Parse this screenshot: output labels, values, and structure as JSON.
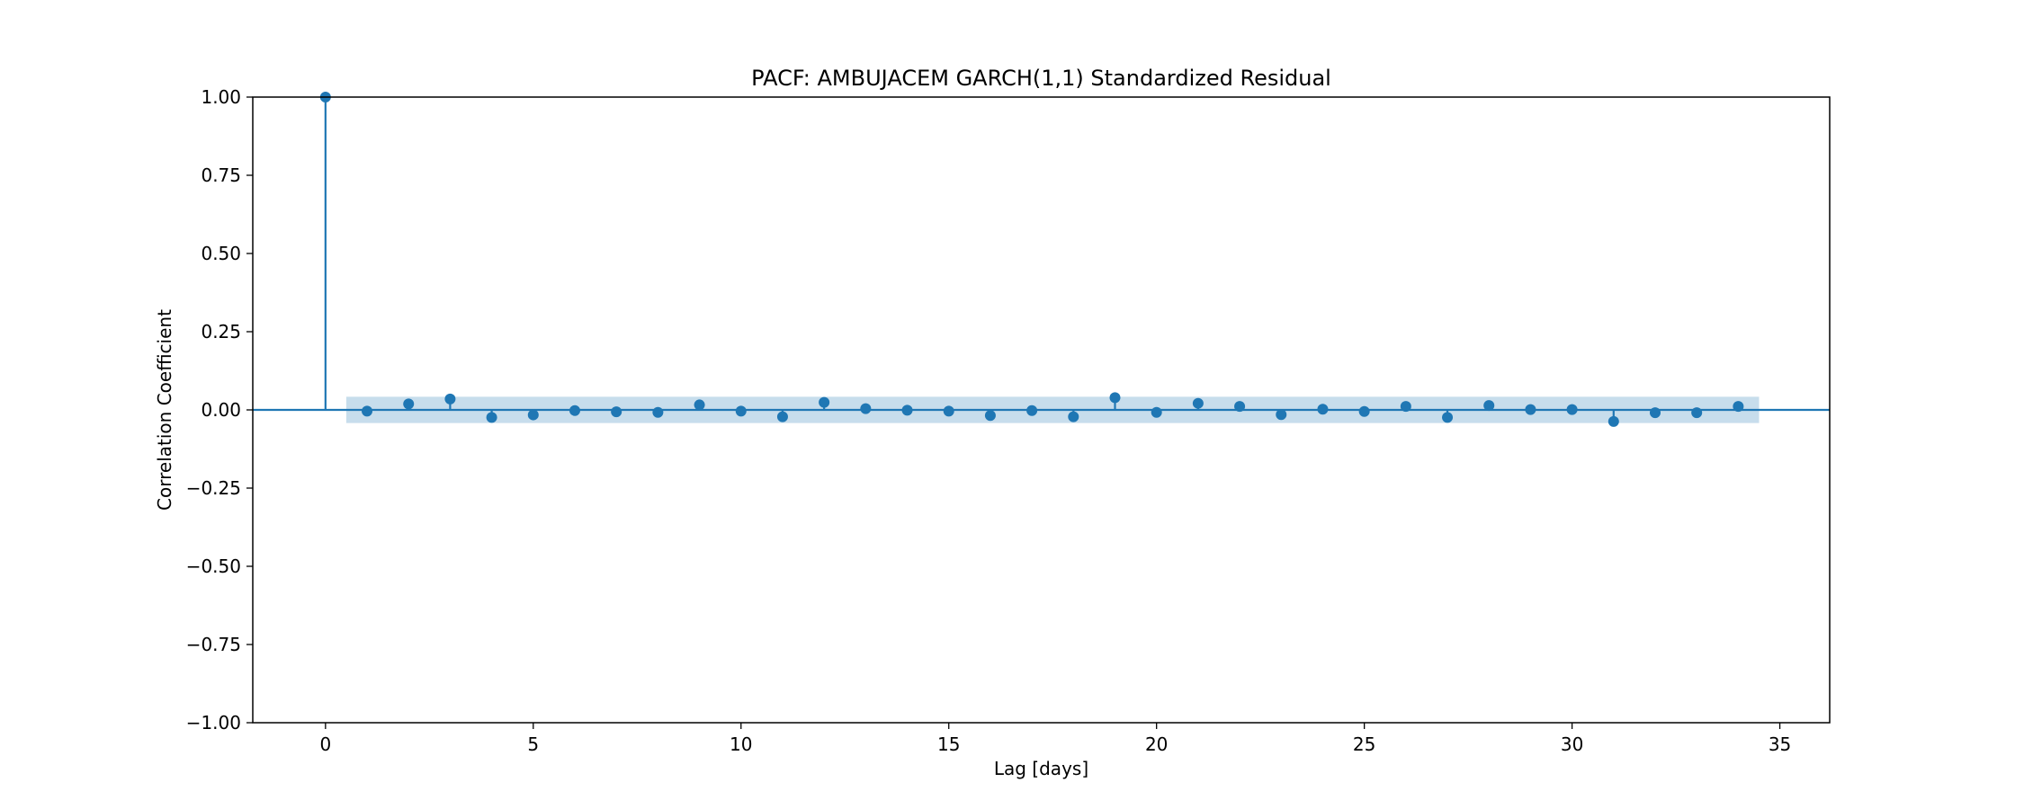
{
  "chart_data": {
    "type": "scatter",
    "subtype": "stem",
    "title": "PACF: AMBUJACEM GARCH(1,1) Standardized Residual",
    "xlabel": "Lag [days]",
    "ylabel": "Correlation Coefficient",
    "xlim": [
      -1.75,
      36.2
    ],
    "ylim": [
      -1.0,
      1.0
    ],
    "xticks": [
      0,
      5,
      10,
      15,
      20,
      25,
      30,
      35
    ],
    "xtick_labels": [
      "0",
      "5",
      "10",
      "15",
      "20",
      "25",
      "30",
      "35"
    ],
    "yticks": [
      1.0,
      0.75,
      0.5,
      0.25,
      0.0,
      -0.25,
      -0.5,
      -0.75,
      -1.0
    ],
    "ytick_labels": [
      "1.00",
      "0.75",
      "0.50",
      "0.25",
      "0.00",
      "−0.25",
      "−0.50",
      "−0.75",
      "−1.00"
    ],
    "grid": false,
    "legend": "none",
    "color": "#1f77b4",
    "band_color": "#1f77b4",
    "confidence_band": {
      "x_range": [
        0.5,
        34.5
      ],
      "lower": -0.042,
      "upper": 0.042
    },
    "lags": [
      0,
      1,
      2,
      3,
      4,
      5,
      6,
      7,
      8,
      9,
      10,
      11,
      12,
      13,
      14,
      15,
      16,
      17,
      18,
      19,
      20,
      21,
      22,
      23,
      24,
      25,
      26,
      27,
      28,
      29,
      30,
      31,
      32,
      33,
      34
    ],
    "values": [
      1.0,
      -0.004,
      0.019,
      0.035,
      -0.024,
      -0.016,
      -0.002,
      -0.006,
      -0.008,
      0.016,
      -0.004,
      -0.022,
      0.024,
      0.004,
      -0.001,
      -0.004,
      -0.018,
      -0.002,
      -0.022,
      0.039,
      -0.008,
      0.021,
      0.011,
      -0.015,
      0.002,
      -0.005,
      0.011,
      -0.024,
      0.014,
      0.001,
      0.001,
      -0.037,
      -0.009,
      -0.009,
      0.011
    ]
  }
}
